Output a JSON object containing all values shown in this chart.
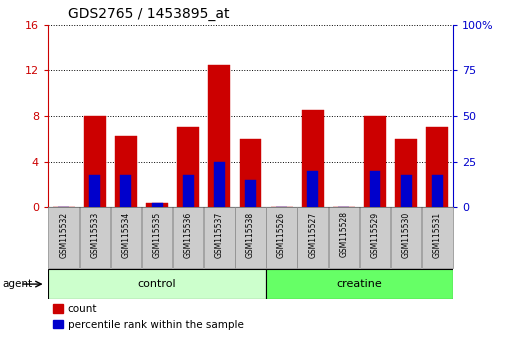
{
  "title": "GDS2765 / 1453895_at",
  "categories": [
    "GSM115532",
    "GSM115533",
    "GSM115534",
    "GSM115535",
    "GSM115536",
    "GSM115537",
    "GSM115538",
    "GSM115526",
    "GSM115527",
    "GSM115528",
    "GSM115529",
    "GSM115530",
    "GSM115531"
  ],
  "count_values": [
    0.05,
    8.0,
    6.2,
    0.4,
    7.0,
    12.5,
    6.0,
    0.05,
    8.5,
    0.05,
    8.0,
    6.0,
    7.0
  ],
  "percentile_values": [
    0.0,
    17.5,
    17.5,
    2.5,
    17.5,
    25.0,
    15.0,
    0.0,
    20.0,
    0.0,
    20.0,
    17.5,
    17.5
  ],
  "ylim_left": [
    0,
    16
  ],
  "ylim_right": [
    0,
    100
  ],
  "yticks_left": [
    0,
    4,
    8,
    12,
    16
  ],
  "yticks_right": [
    0,
    25,
    50,
    75,
    100
  ],
  "bar_color": "#cc0000",
  "percentile_color": "#0000cc",
  "bar_width": 0.7,
  "percentile_bar_width": 0.35,
  "ctrl_n": 7,
  "creat_n": 6,
  "control_color": "#ccffcc",
  "creatine_color": "#66ff66",
  "group_label_control": "control",
  "group_label_creatine": "creatine",
  "agent_label": "agent",
  "legend_count": "count",
  "legend_percentile": "percentile rank within the sample",
  "tick_label_color_left": "#cc0000",
  "tick_label_color_right": "#0000cc",
  "xticklabel_bg": "#cccccc",
  "title_fontsize": 10,
  "axis_fontsize": 8,
  "group_fontsize": 8,
  "legend_fontsize": 7.5,
  "xtick_fontsize": 5.5
}
